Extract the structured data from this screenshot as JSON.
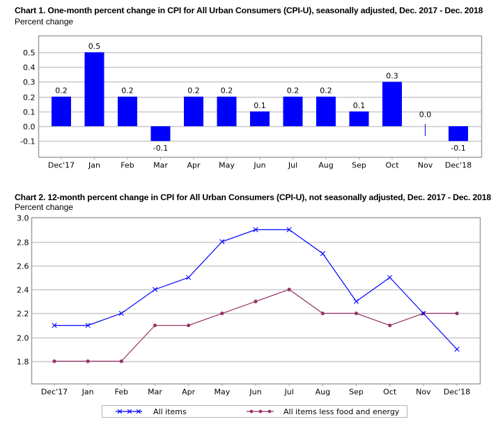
{
  "chart_data": [
    {
      "type": "bar",
      "title": "Chart 1. One-month percent change in CPI for All Urban Consumers (CPI-U), seasonally adjusted, Dec. 2017 - Dec. 2018",
      "ylabel": "Percent change",
      "xlabel": "",
      "categories": [
        "Dec'17",
        "Jan",
        "Feb",
        "Mar",
        "Apr",
        "May",
        "Jun",
        "Jul",
        "Aug",
        "Sep",
        "Oct",
        "Nov",
        "Dec'18"
      ],
      "values": [
        0.2,
        0.5,
        0.2,
        -0.1,
        0.2,
        0.2,
        0.1,
        0.2,
        0.2,
        0.1,
        0.3,
        0.0,
        -0.1
      ],
      "data_labels": [
        "0.2",
        "0.5",
        "0.2",
        "-0.1",
        "0.2",
        "0.2",
        "0.1",
        "0.2",
        "0.2",
        "0.1",
        "0.3",
        "0.0",
        "-0.1"
      ],
      "yticks": [
        -0.1,
        0.0,
        0.1,
        0.2,
        0.3,
        0.4,
        0.5
      ],
      "ytick_labels": [
        "-0.1",
        "0.0",
        "0.1",
        "0.2",
        "0.3",
        "0.4",
        "0.5"
      ],
      "ylim": [
        -0.205,
        0.62
      ],
      "grid": true,
      "bar_color": "#0000ff"
    },
    {
      "type": "line",
      "title": "Chart 2. 12-month percent change in CPI for All Urban Consumers (CPI-U), not seasonally adjusted, Dec. 2017 - Dec. 2018",
      "ylabel": "Percent change",
      "xlabel": "",
      "categories": [
        "Dec'17",
        "Jan",
        "Feb",
        "Mar",
        "Apr",
        "May",
        "Jun",
        "Jul",
        "Aug",
        "Sep",
        "Oct",
        "Nov",
        "Dec'18"
      ],
      "series": [
        {
          "name": "All items",
          "marker": "x",
          "color": "#0000ff",
          "values": [
            2.1,
            2.1,
            2.2,
            2.4,
            2.5,
            2.8,
            2.9,
            2.9,
            2.7,
            2.3,
            2.5,
            2.2,
            1.9
          ]
        },
        {
          "name": "All items less food and energy",
          "marker": "dot",
          "color": "#993366",
          "values": [
            1.8,
            1.8,
            1.8,
            2.1,
            2.1,
            2.2,
            2.3,
            2.4,
            2.2,
            2.2,
            2.1,
            2.2,
            2.2
          ]
        }
      ],
      "yticks": [
        1.8,
        2.0,
        2.2,
        2.4,
        2.6,
        2.8,
        3.0
      ],
      "ytick_labels": [
        "1.8",
        "2.0",
        "2.2",
        "2.4",
        "2.6",
        "2.8",
        "3.0"
      ],
      "ylim": [
        1.613,
        3.0
      ],
      "grid": true,
      "legend": "bottom-center"
    }
  ]
}
